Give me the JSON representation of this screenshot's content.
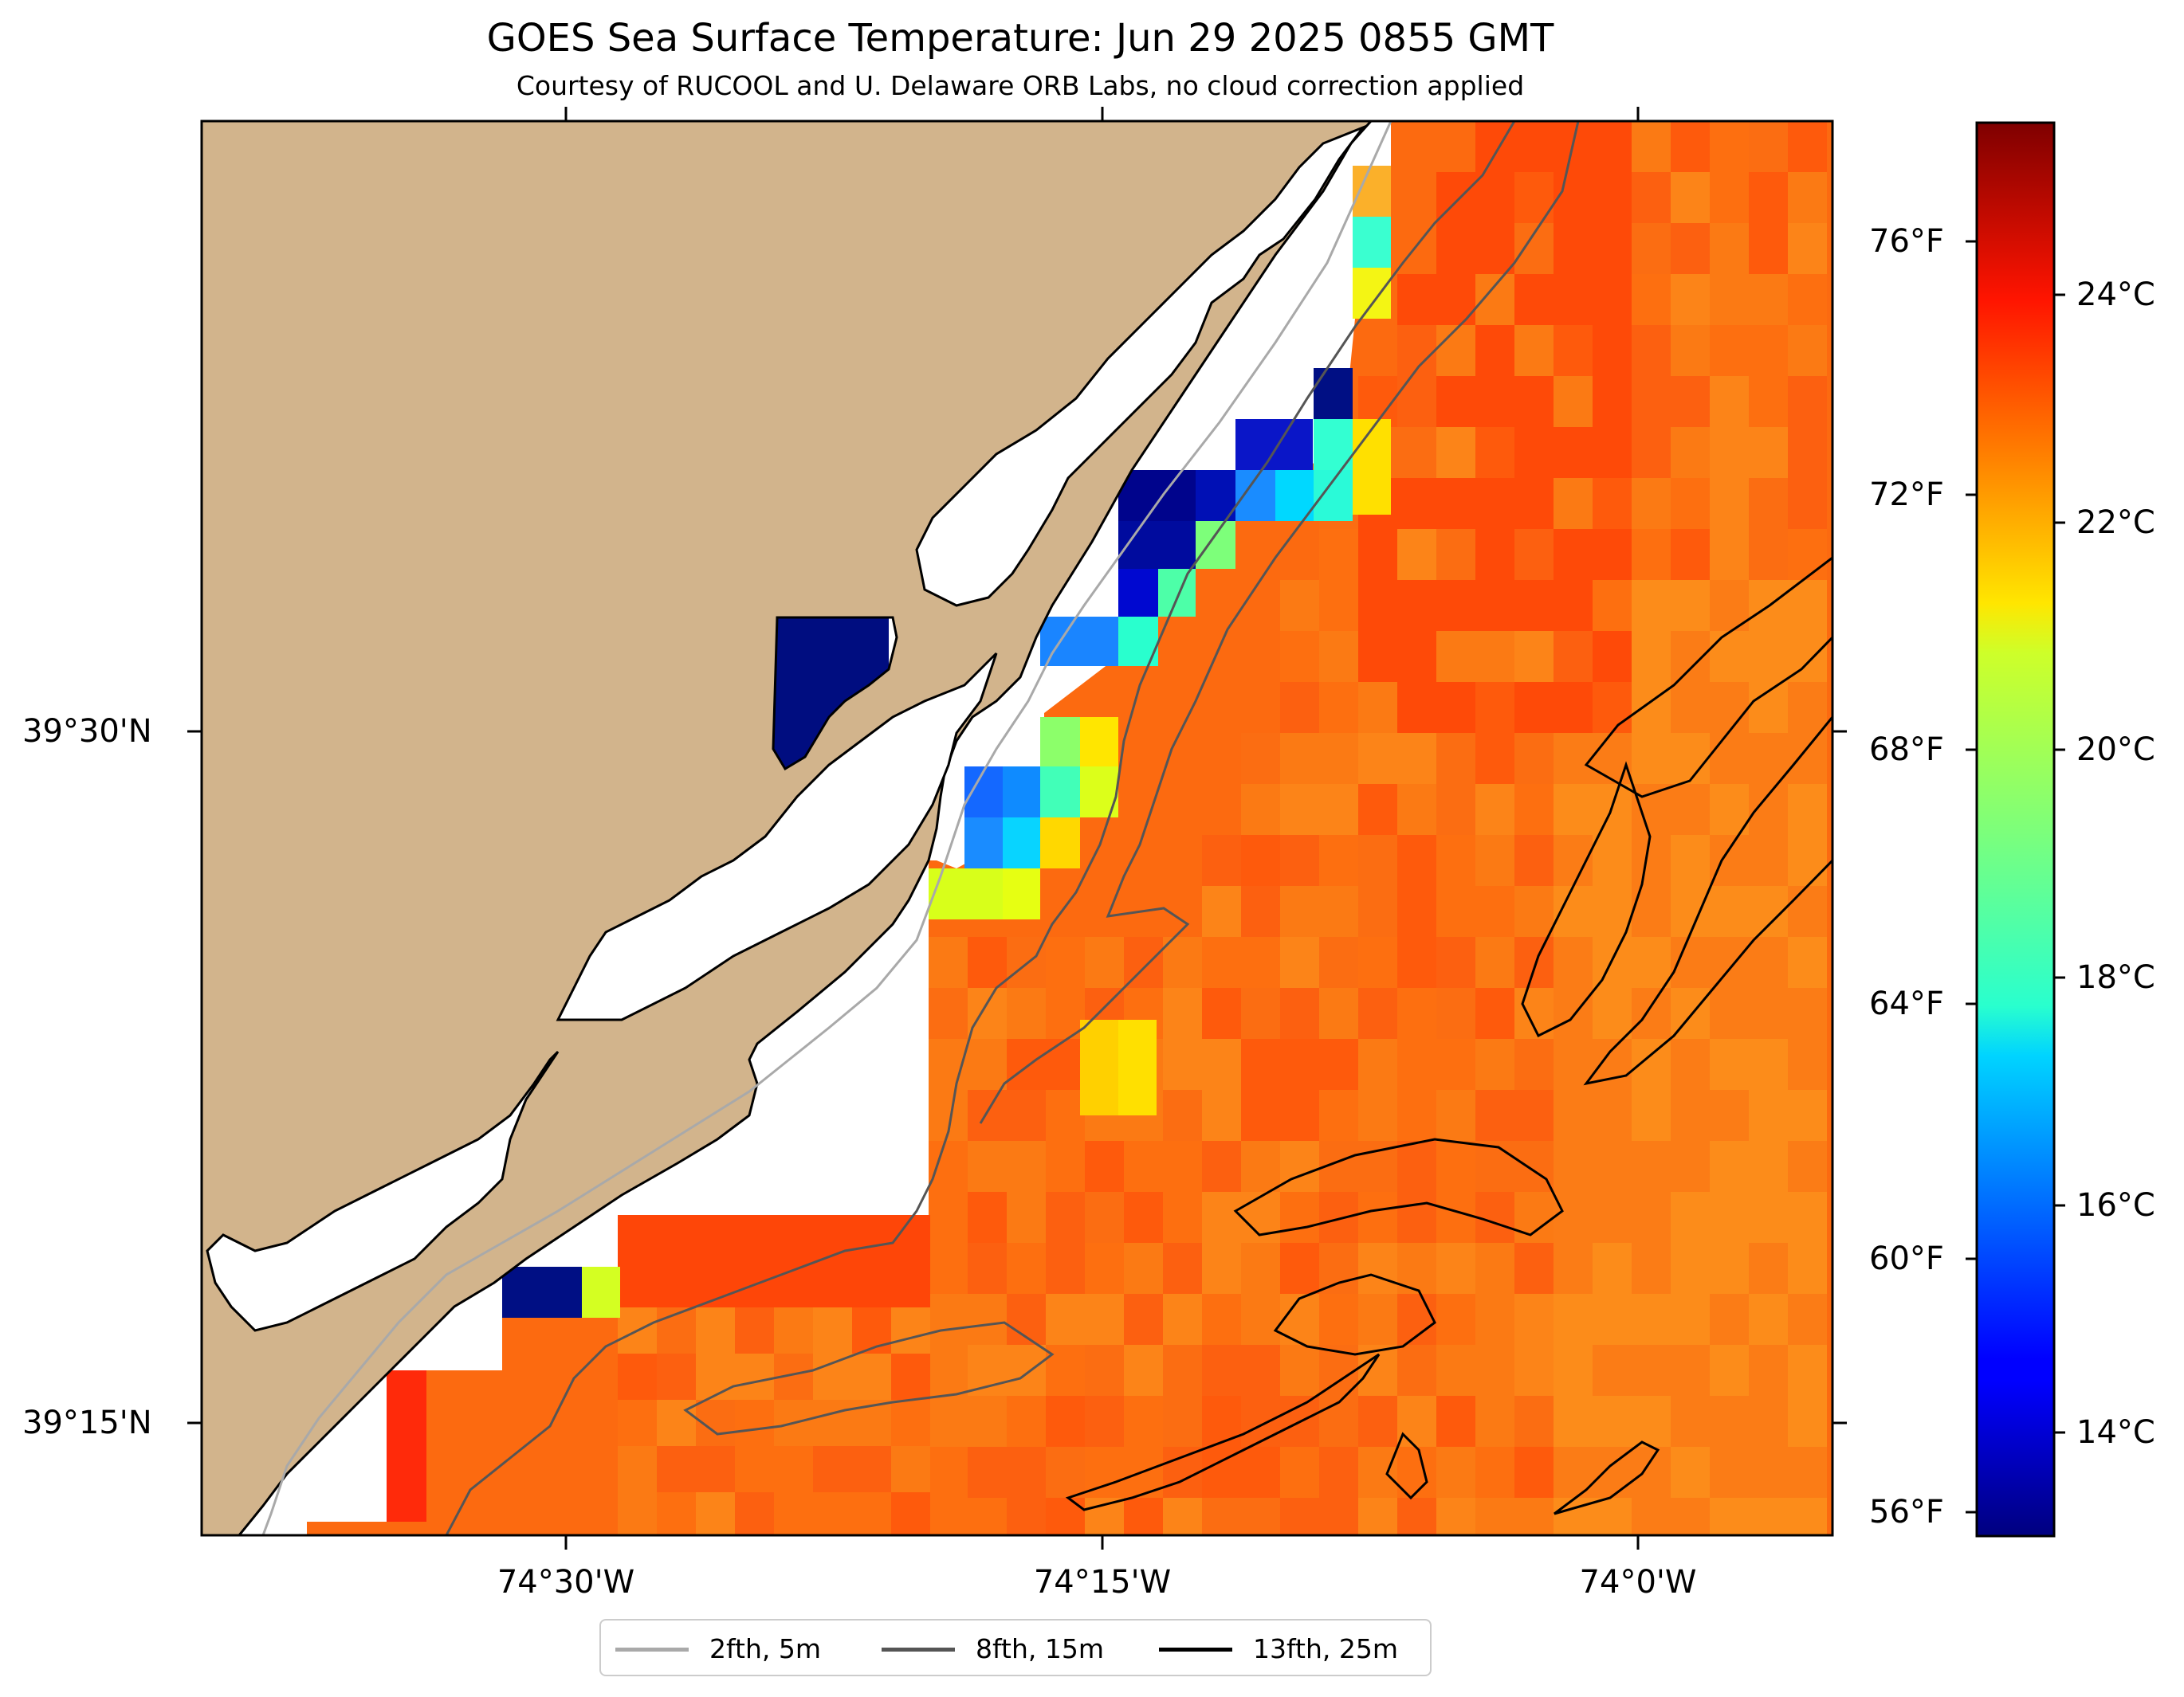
{
  "title": "GOES Sea Surface Temperature: Jun 29 2025 0855 GMT",
  "subtitle": "Courtesy of RUCOOL and U. Delaware ORB Labs, no cloud correction applied",
  "colors": {
    "land": "#d2b48c",
    "coastline": "#000000",
    "no_data": "#ffffff",
    "colormap": "jet"
  },
  "axes": {
    "lon_labels": [
      "74°30'W",
      "74°15'W",
      "74°0'W"
    ],
    "lat_labels": [
      "39°30'N",
      "39°15'N"
    ]
  },
  "colorbar": {
    "celsius_labels": [
      "14°C",
      "16°C",
      "18°C",
      "20°C",
      "22°C",
      "24°C"
    ],
    "fahrenheit_labels": [
      "56°F",
      "60°F",
      "64°F",
      "68°F",
      "72°F",
      "76°F"
    ],
    "range_c": [
      12.6,
      25.3
    ]
  },
  "legend": [
    {
      "label": "2fth, 5m",
      "color": "#a9a9a9"
    },
    {
      "label": "8fth, 15m",
      "color": "#555555"
    },
    {
      "label": "13fth, 25m",
      "color": "#000000"
    }
  ]
}
